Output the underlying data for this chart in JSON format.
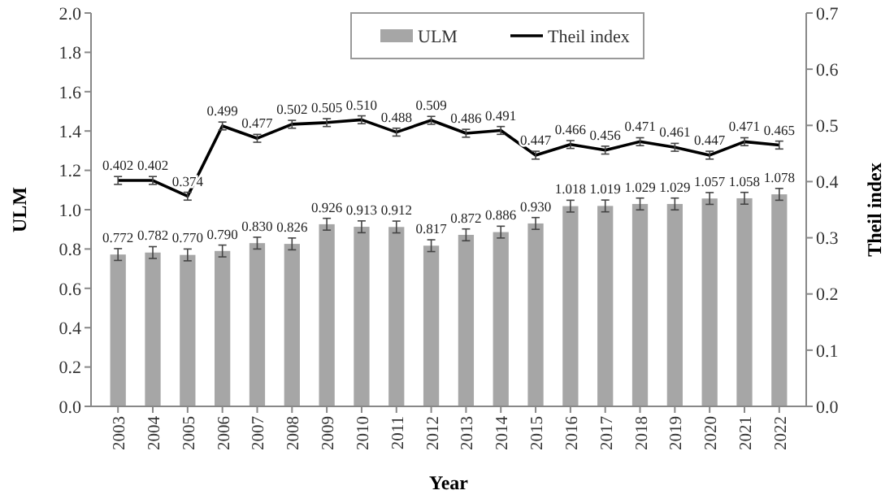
{
  "chart_data": {
    "type": "bar",
    "xlabel": "Year",
    "ylabel": "ULM",
    "y2label": "Theil index",
    "categories": [
      "2003",
      "2004",
      "2005",
      "2006",
      "2007",
      "2008",
      "2009",
      "2010",
      "2011",
      "2012",
      "2013",
      "2014",
      "2015",
      "2016",
      "2017",
      "2018",
      "2019",
      "2020",
      "2021",
      "2022"
    ],
    "series": [
      {
        "name": "ULM",
        "color": "#a6a6a6",
        "values": [
          0.772,
          0.782,
          0.77,
          0.79,
          0.83,
          0.826,
          0.926,
          0.913,
          0.912,
          0.817,
          0.872,
          0.886,
          0.93,
          1.018,
          1.019,
          1.029,
          1.029,
          1.057,
          1.058,
          1.078
        ],
        "errors": [
          0.03,
          0.03,
          0.03,
          0.03,
          0.03,
          0.03,
          0.03,
          0.03,
          0.03,
          0.03,
          0.03,
          0.03,
          0.03,
          0.03,
          0.03,
          0.03,
          0.03,
          0.03,
          0.03,
          0.03
        ],
        "value_labels": [
          "0.772",
          "0.782",
          "0.770",
          "0.790",
          "0.830",
          "0.826",
          "0.926",
          "0.913",
          "0.912",
          "0.817",
          "0.872",
          "0.886",
          "0.930",
          "1.018",
          "1.019",
          "1.029",
          "1.029",
          "1.057",
          "1.058",
          "1.078"
        ]
      },
      {
        "name": "Theil index",
        "type": "line",
        "axis": "y2",
        "color": "#000000",
        "values": [
          0.402,
          0.402,
          0.374,
          0.499,
          0.477,
          0.502,
          0.505,
          0.51,
          0.488,
          0.509,
          0.486,
          0.491,
          0.447,
          0.466,
          0.456,
          0.471,
          0.461,
          0.447,
          0.471,
          0.465
        ],
        "errors": [
          0.007,
          0.007,
          0.007,
          0.007,
          0.007,
          0.007,
          0.007,
          0.007,
          0.007,
          0.007,
          0.007,
          0.007,
          0.007,
          0.007,
          0.007,
          0.007,
          0.007,
          0.007,
          0.007,
          0.007
        ],
        "value_labels": [
          "0.402",
          "0.402",
          "0.374",
          "0.499",
          "0.477",
          "0.502",
          "0.505",
          "0.510",
          "0.488",
          "0.509",
          "0.486",
          "0.491",
          "0.447",
          "0.466",
          "0.456",
          "0.471",
          "0.461",
          "0.447",
          "0.471",
          "0.465"
        ]
      }
    ],
    "ylim": [
      0,
      2
    ],
    "yticks": [
      {
        "value": 0,
        "label": "0.0"
      },
      0.2,
      0.4,
      0.6,
      0.8,
      {
        "value": 1,
        "label": "1.0"
      },
      1.2,
      1.4,
      1.6,
      1.8,
      {
        "value": 2,
        "label": "2.0"
      }
    ],
    "y2lim": [
      0,
      0.7
    ],
    "y2ticks": [
      {
        "value": 0,
        "label": "0.0"
      },
      0.1,
      0.2,
      0.3,
      0.4,
      0.5,
      0.6,
      0.7
    ],
    "legend": "top",
    "grid": false,
    "marker": "none",
    "line_style": "solid"
  }
}
